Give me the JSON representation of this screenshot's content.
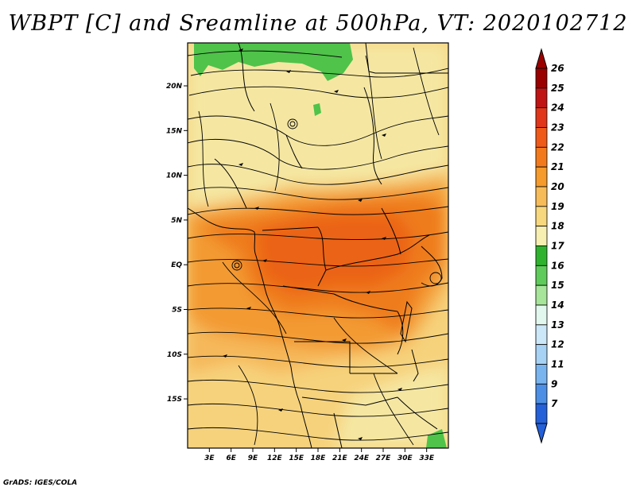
{
  "title": "WBPT [C] and Sreamline at 500hPa, VT: 2020102712",
  "footer": "GrADS: IGES/COLA",
  "map": {
    "lon_labels": [
      "3E",
      "6E",
      "9E",
      "12E",
      "15E",
      "18E",
      "21E",
      "24E",
      "27E",
      "30E",
      "33E"
    ],
    "lat_labels": [
      "20N",
      "15N",
      "10N",
      "5N",
      "EQ",
      "5S",
      "10S",
      "15S"
    ],
    "colors": {
      "green": "#4fc34a",
      "light_yellow": "#f5e7a2",
      "yellow": "#f6d27c",
      "light_orange": "#f5b85a",
      "orange": "#f39a30",
      "dark_orange": "#ef7b1c",
      "red_orange": "#eb6316"
    }
  },
  "colorbar": {
    "labels": [
      "26",
      "25",
      "24",
      "23",
      "22",
      "21",
      "20",
      "19",
      "18",
      "17",
      "16",
      "15",
      "14",
      "13",
      "12",
      "11",
      "9",
      "7"
    ],
    "colors": [
      "#9a0000",
      "#c01414",
      "#e1361a",
      "#f05a18",
      "#f37a1c",
      "#f59a2c",
      "#f6bc5a",
      "#f7d87e",
      "#f7eeb2",
      "#2fb32f",
      "#5fcb5a",
      "#a6e59a",
      "#e2f7ee",
      "#cce7f7",
      "#a8d2f4",
      "#7ab4ee",
      "#4c8fe5",
      "#2460d8"
    ]
  }
}
